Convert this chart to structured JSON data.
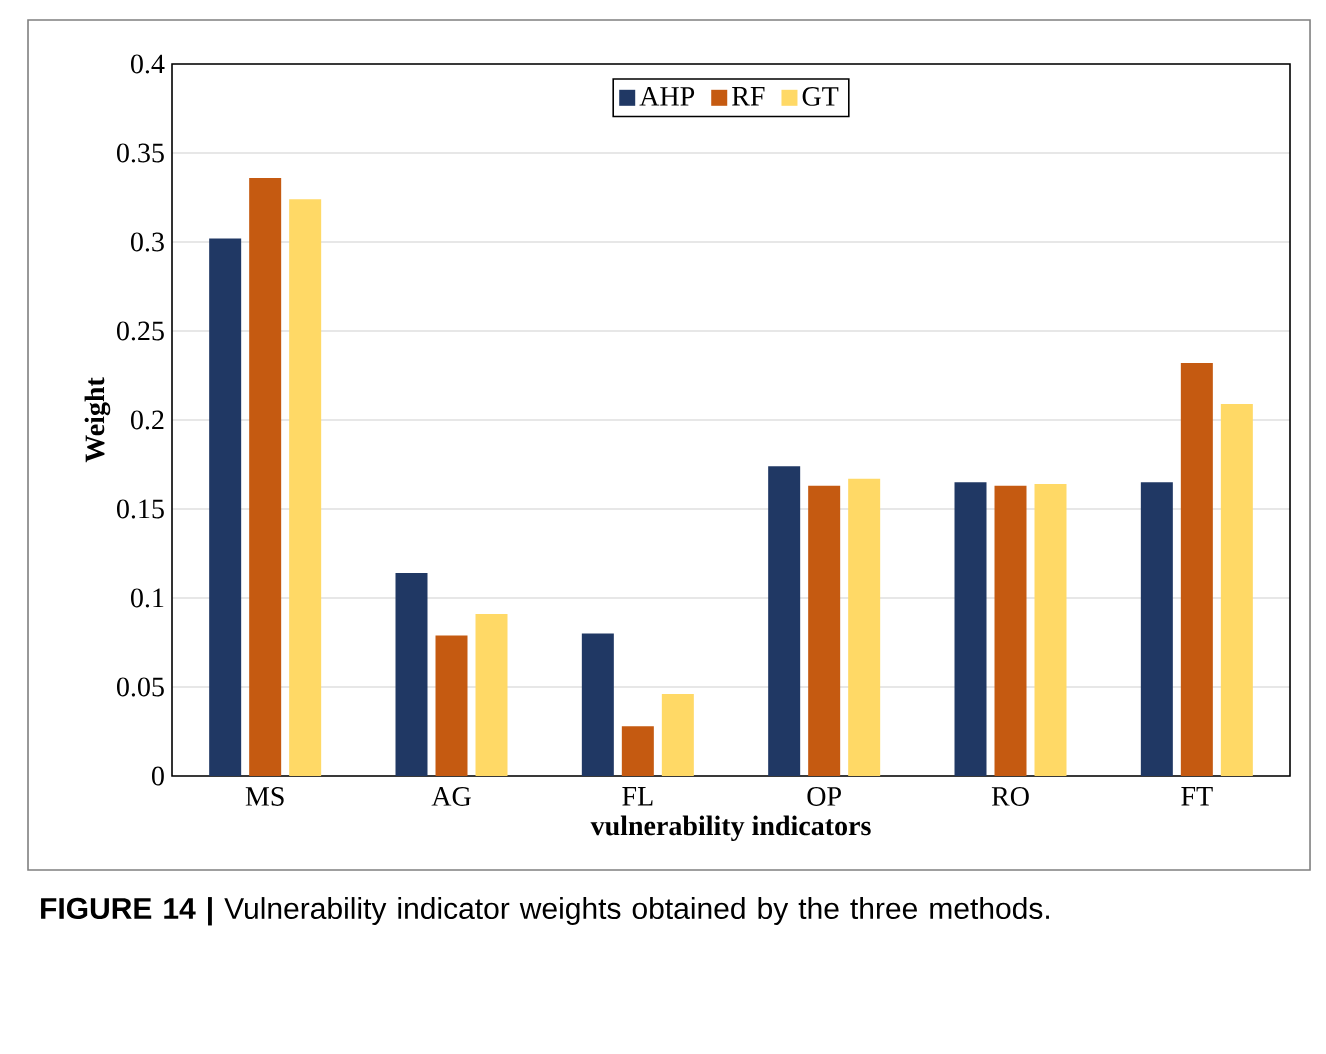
{
  "chart_data": {
    "type": "bar",
    "xlabel": "vulnerability indicators",
    "ylabel": "Weight",
    "categories": [
      "MS",
      "AG",
      "FL",
      "OP",
      "RO",
      "FT"
    ],
    "series": [
      {
        "name": "AHP",
        "color": "#203864",
        "values": [
          0.302,
          0.114,
          0.08,
          0.174,
          0.165,
          0.165
        ]
      },
      {
        "name": "RF",
        "color": "#c55a11",
        "values": [
          0.336,
          0.079,
          0.028,
          0.163,
          0.163,
          0.232
        ]
      },
      {
        "name": "GT",
        "color": "#ffd966",
        "values": [
          0.324,
          0.091,
          0.046,
          0.167,
          0.164,
          0.209
        ]
      }
    ],
    "ylim": [
      0,
      0.4
    ],
    "yticks": [
      0,
      0.05,
      0.1,
      0.15,
      0.2,
      0.25,
      0.3,
      0.35,
      0.4
    ],
    "grid": "y",
    "legend": "top",
    "annotations": [
      "**FIGURE 14 |** Vulnerability indicator weights obtained by the three methods."
    ]
  }
}
